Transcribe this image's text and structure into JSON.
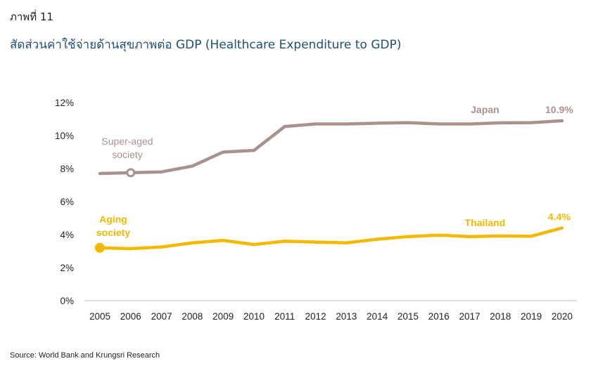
{
  "header": {
    "figure_label": "ภาพที่ 11",
    "title": "สัดส่วนค่าใช้จ่ายด้านสุขภาพต่อ GDP (Healthcare Expenditure to GDP)"
  },
  "source": "Source: World Bank and Krungsri Research",
  "chart_data": {
    "type": "line",
    "x": [
      "2005",
      "2006",
      "2007",
      "2008",
      "2009",
      "2010",
      "2011",
      "2012",
      "2013",
      "2014",
      "2015",
      "2016",
      "2017",
      "2018",
      "2019",
      "2020"
    ],
    "y_ticks": [
      "0%",
      "2%",
      "4%",
      "6%",
      "8%",
      "10%",
      "12%"
    ],
    "ylim": [
      0,
      12
    ],
    "grid": false,
    "series": [
      {
        "name": "Japan",
        "color": "#a9928e",
        "values": [
          7.7,
          7.75,
          7.8,
          8.15,
          9.0,
          9.1,
          10.55,
          10.7,
          10.7,
          10.75,
          10.78,
          10.7,
          10.7,
          10.77,
          10.78,
          10.9
        ],
        "end_label": "10.9%"
      },
      {
        "name": "Thailand",
        "color": "#f5b800",
        "values": [
          3.2,
          3.15,
          3.25,
          3.5,
          3.65,
          3.4,
          3.6,
          3.55,
          3.5,
          3.72,
          3.88,
          3.97,
          3.88,
          3.92,
          3.9,
          4.4
        ],
        "end_label": "4.4%"
      }
    ],
    "annotations": [
      {
        "series": 0,
        "index": 1,
        "marker": "hollow-circle",
        "text_lines": [
          "Super-aged",
          "society"
        ]
      },
      {
        "series": 1,
        "index": 0,
        "marker": "filled-circle",
        "text_lines": [
          "Aging",
          "society"
        ]
      }
    ]
  }
}
